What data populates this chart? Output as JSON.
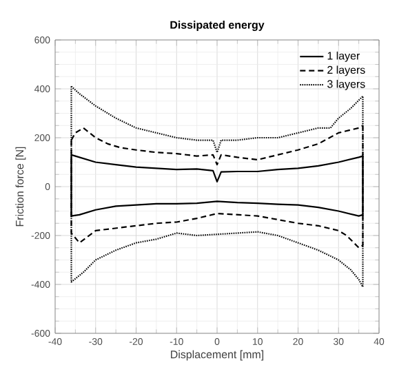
{
  "chart_data": {
    "type": "line",
    "title": "Dissipated energy",
    "xlabel": "Displacement [mm]",
    "ylabel": "Friction force [N]",
    "xlim": [
      -40,
      40
    ],
    "ylim": [
      -600,
      600
    ],
    "xticks": [
      -40,
      -30,
      -20,
      -10,
      0,
      10,
      20,
      30,
      40
    ],
    "yticks": [
      -600,
      -400,
      -200,
      0,
      200,
      400,
      600
    ],
    "grid": true,
    "legend": "top right",
    "marker": "none",
    "series": [
      {
        "name": "1 layer",
        "color": "#000000",
        "line_style": "solid",
        "x": [
          -36,
          -35,
          -30,
          -25,
          -20,
          -15,
          -10,
          -5,
          -1,
          0,
          1,
          5,
          10,
          15,
          20,
          25,
          30,
          35,
          36
        ],
        "values": [
          130,
          125,
          100,
          90,
          80,
          75,
          70,
          72,
          65,
          20,
          60,
          62,
          62,
          70,
          75,
          85,
          100,
          120,
          125
        ]
      },
      {
        "color": "#000000",
        "line_style": "solid",
        "x": [
          -36,
          -36,
          -34,
          -30,
          -25,
          -20,
          -15,
          -10,
          -5,
          0,
          5,
          10,
          15,
          20,
          25,
          30,
          35,
          36,
          36
        ],
        "values": [
          130,
          -120,
          -115,
          -95,
          -80,
          -75,
          -70,
          -70,
          -68,
          -60,
          -65,
          -68,
          -72,
          -75,
          -85,
          -100,
          -120,
          -115,
          125
        ]
      },
      {
        "name": "2 layers",
        "color": "#000000",
        "line_style": "dashed",
        "x": [
          -36,
          -35,
          -33,
          -30,
          -27,
          -24,
          -20,
          -15,
          -10,
          -5,
          -1,
          0,
          1,
          5,
          10,
          15,
          20,
          25,
          30,
          35,
          36
        ],
        "values": [
          190,
          220,
          240,
          200,
          175,
          160,
          150,
          140,
          135,
          125,
          130,
          90,
          130,
          120,
          110,
          130,
          150,
          175,
          220,
          240,
          250
        ]
      },
      {
        "color": "#000000",
        "line_style": "dashed",
        "x": [
          -36,
          -36,
          -34,
          -30,
          -25,
          -20,
          -15,
          -10,
          -5,
          0,
          5,
          10,
          15,
          20,
          25,
          30,
          32,
          35,
          36,
          36
        ],
        "values": [
          190,
          -190,
          -230,
          -180,
          -170,
          -160,
          -150,
          -145,
          -130,
          -110,
          -115,
          -120,
          -135,
          -150,
          -160,
          -180,
          -200,
          -250,
          -240,
          250
        ]
      },
      {
        "name": "3 layers",
        "color": "#000000",
        "line_style": "dotted",
        "x": [
          -36,
          -34,
          -30,
          -25,
          -20,
          -15,
          -10,
          -5,
          -1,
          0,
          1,
          5,
          10,
          15,
          20,
          25,
          28,
          30,
          33,
          36
        ],
        "values": [
          410,
          380,
          330,
          280,
          240,
          220,
          200,
          190,
          190,
          140,
          190,
          190,
          200,
          200,
          220,
          240,
          240,
          280,
          320,
          370
        ]
      },
      {
        "color": "#000000",
        "line_style": "dotted",
        "x": [
          -36,
          -36,
          -33,
          -30,
          -25,
          -20,
          -15,
          -10,
          -5,
          0,
          5,
          10,
          15,
          20,
          25,
          30,
          33,
          35,
          36,
          36
        ],
        "values": [
          410,
          -390,
          -350,
          -300,
          -260,
          -230,
          -215,
          -190,
          -200,
          -195,
          -190,
          -185,
          -200,
          -230,
          -260,
          -300,
          -340,
          -380,
          -410,
          370
        ]
      }
    ]
  }
}
